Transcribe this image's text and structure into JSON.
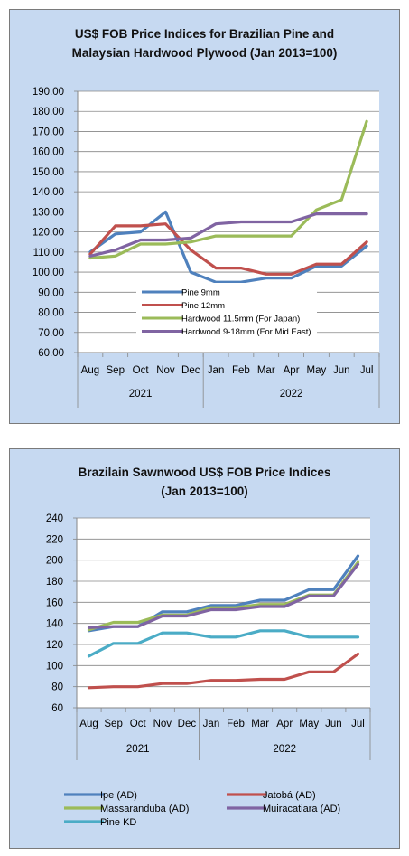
{
  "charts": [
    {
      "title_line1": "US$ FOB Price Indices for Brazilian Pine and",
      "title_line2": "Malaysian Hardwood Plywood (Jan 2013=100)"
    },
    {
      "title_line1": "Brazilain Sawnwood US$ FOB Price Indices",
      "title_line2": "(Jan 2013=100)"
    }
  ],
  "chart_data": [
    {
      "type": "line",
      "categories": [
        "Aug",
        "Sep",
        "Oct",
        "Nov",
        "Dec",
        "Jan",
        "Feb",
        "Mar",
        "Apr",
        "May",
        "Jun",
        "Jul"
      ],
      "year_groups": [
        {
          "label": "2021",
          "start": 0,
          "end": 4
        },
        {
          "label": "2022",
          "start": 5,
          "end": 11
        }
      ],
      "ylim": [
        60,
        190
      ],
      "ytick_step": 10,
      "ytick_decimals": 2,
      "legend_position": "inside-bottom-center",
      "series": [
        {
          "name": "Pine 9mm",
          "color": "#4f81bd",
          "values": [
            110,
            119,
            120,
            130,
            100,
            95,
            95,
            97,
            97,
            103,
            103,
            113
          ]
        },
        {
          "name": "Pine 12mm",
          "color": "#c0504d",
          "values": [
            109,
            123,
            123,
            124,
            111,
            102,
            102,
            99,
            99,
            104,
            104,
            115
          ]
        },
        {
          "name": "Hardwood 11.5mm (For Japan)",
          "color": "#9bbb59",
          "values": [
            107,
            108,
            114,
            114,
            115,
            118,
            118,
            118,
            118,
            131,
            136,
            175
          ]
        },
        {
          "name": "Hardwood 9-18mm (For Mid East)",
          "color": "#8064a2",
          "values": [
            108,
            111,
            116,
            116,
            117,
            124,
            125,
            125,
            125,
            129,
            129,
            129
          ]
        }
      ]
    },
    {
      "type": "line",
      "categories": [
        "Aug",
        "Sep",
        "Oct",
        "Nov",
        "Dec",
        "Jan",
        "Feb",
        "Mar",
        "Apr",
        "May",
        "Jun",
        "Jul"
      ],
      "year_groups": [
        {
          "label": "2021",
          "start": 0,
          "end": 4
        },
        {
          "label": "2022",
          "start": 5,
          "end": 11
        }
      ],
      "ylim": [
        60,
        240
      ],
      "ytick_step": 20,
      "ytick_decimals": 0,
      "legend_position": "bottom",
      "series": [
        {
          "name": "Ipe (AD)",
          "color": "#4f81bd",
          "values": [
            133,
            137,
            137,
            151,
            151,
            157,
            157,
            162,
            162,
            172,
            172,
            204
          ]
        },
        {
          "name": "Jatobá (AD)",
          "color": "#c0504d",
          "values": [
            79,
            80,
            80,
            83,
            83,
            86,
            86,
            87,
            87,
            94,
            94,
            111
          ]
        },
        {
          "name": "Massaranduba (AD)",
          "color": "#9bbb59",
          "values": [
            134,
            141,
            141,
            148,
            148,
            155,
            155,
            158,
            158,
            167,
            167,
            198
          ]
        },
        {
          "name": "Muiracatiara (AD)",
          "color": "#8064a2",
          "values": [
            136,
            137,
            137,
            147,
            147,
            153,
            153,
            156,
            156,
            166,
            166,
            196
          ]
        },
        {
          "name": "Pine KD",
          "color": "#4bacc6",
          "values": [
            109,
            121,
            121,
            131,
            131,
            127,
            127,
            133,
            133,
            127,
            127,
            127
          ]
        }
      ]
    }
  ]
}
